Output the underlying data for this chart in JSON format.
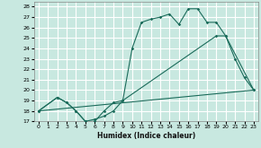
{
  "xlabel": "Humidex (Indice chaleur)",
  "bg_color": "#c8e8e0",
  "grid_color": "#ffffff",
  "line_color": "#1a6b5a",
  "xlim": [
    -0.5,
    23.5
  ],
  "ylim": [
    17,
    28.5
  ],
  "xticks": [
    0,
    1,
    2,
    3,
    4,
    5,
    6,
    7,
    8,
    9,
    10,
    11,
    12,
    13,
    14,
    15,
    16,
    17,
    18,
    19,
    20,
    21,
    22,
    23
  ],
  "yticks": [
    17,
    18,
    19,
    20,
    21,
    22,
    23,
    24,
    25,
    26,
    27,
    28
  ],
  "line1_x": [
    0,
    2,
    3,
    4,
    5,
    6,
    7,
    8,
    9,
    10,
    11,
    12,
    13,
    14,
    15,
    16,
    17,
    18,
    19,
    20,
    21,
    22,
    23
  ],
  "line1_y": [
    18,
    19.3,
    18.8,
    18.0,
    17.0,
    17.0,
    18.0,
    18.8,
    19.0,
    24.0,
    26.5,
    26.8,
    27.0,
    27.3,
    26.3,
    27.8,
    27.8,
    26.5,
    26.5,
    25.2,
    23.0,
    21.2,
    20.0
  ],
  "line2_x": [
    0,
    2,
    3,
    4,
    5,
    6,
    7,
    8,
    9,
    19,
    20,
    23
  ],
  "line2_y": [
    18,
    19.3,
    18.8,
    18.0,
    17.0,
    17.2,
    17.5,
    18.0,
    19.0,
    25.2,
    25.2,
    20.0
  ],
  "line3_x": [
    0,
    23
  ],
  "line3_y": [
    18.0,
    20.0
  ]
}
